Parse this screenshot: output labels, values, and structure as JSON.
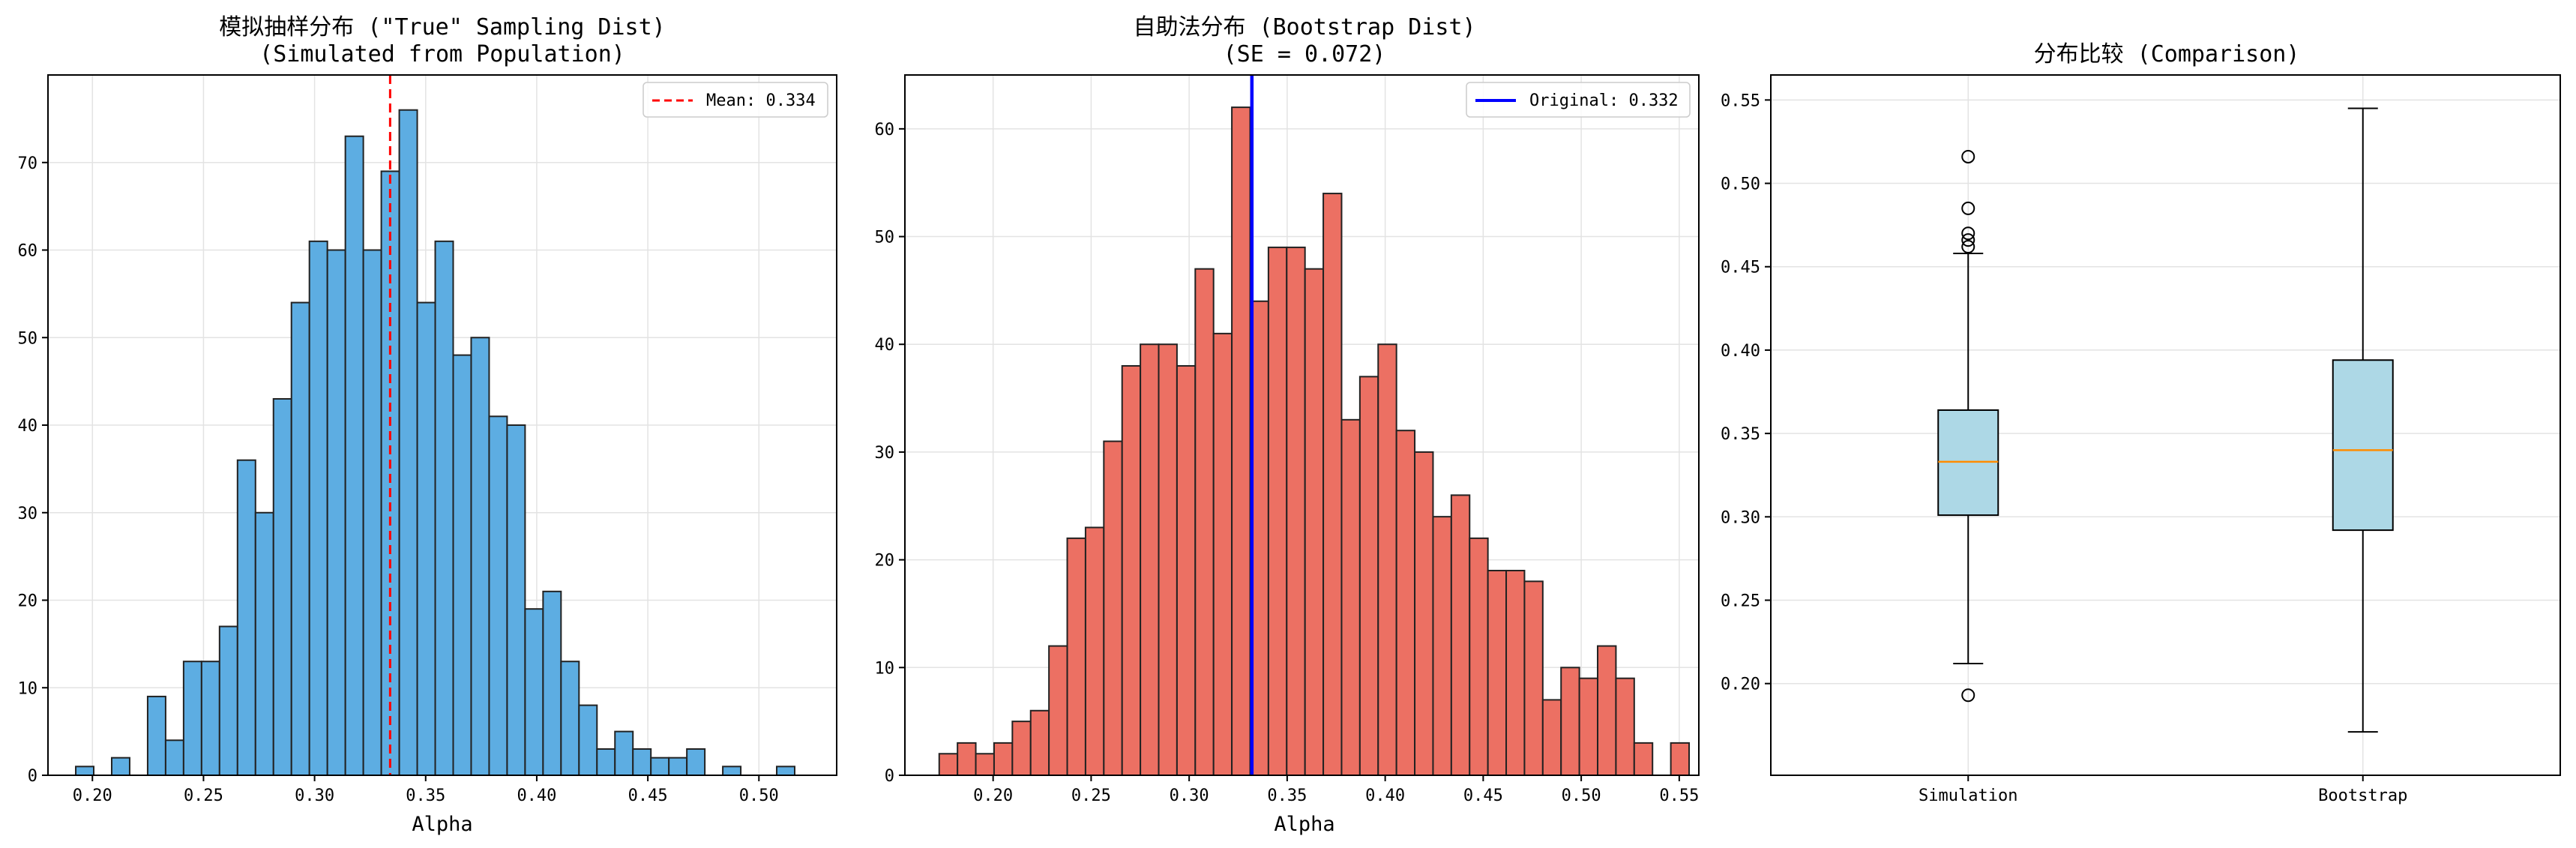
{
  "chart_data": [
    {
      "type": "bar",
      "title": [
        "模拟抽样分布 (\"True\" Sampling Dist)",
        "(Simulated from Population)"
      ],
      "xlabel": "Alpha",
      "ylabel": "",
      "xlim": [
        0.18,
        0.535
      ],
      "ylim": [
        0,
        80
      ],
      "xticks": [
        0.2,
        0.25,
        0.3,
        0.35,
        0.4,
        0.45,
        0.5
      ],
      "xtick_labels": [
        "0.20",
        "0.25",
        "0.30",
        "0.35",
        "0.40",
        "0.45",
        "0.50"
      ],
      "yticks": [
        0,
        10,
        20,
        30,
        40,
        50,
        60,
        70
      ],
      "ytick_labels": [
        "0",
        "10",
        "20",
        "30",
        "40",
        "50",
        "60",
        "70"
      ],
      "bar_color": "#5dade2",
      "bin_start": 0.1925,
      "bin_width": 0.00809,
      "values": [
        1,
        0,
        2,
        0,
        9,
        4,
        13,
        13,
        17,
        36,
        30,
        43,
        54,
        61,
        60,
        73,
        60,
        69,
        76,
        54,
        61,
        48,
        50,
        41,
        40,
        19,
        21,
        13,
        8,
        3,
        5,
        3,
        2,
        2,
        3,
        0,
        1,
        0,
        0,
        1
      ],
      "reference_line": {
        "x": 0.334,
        "color": "#ff0000",
        "style": "dashed"
      },
      "legend": {
        "position": "top-right",
        "entries": [
          "Mean: 0.334"
        ]
      },
      "grid": true
    },
    {
      "type": "bar",
      "title": [
        "自助法分布 (Bootstrap Dist)",
        "(SE = 0.072)"
      ],
      "xlabel": "Alpha",
      "ylabel": "",
      "xlim": [
        0.155,
        0.56
      ],
      "ylim": [
        0,
        65
      ],
      "xticks": [
        0.2,
        0.25,
        0.3,
        0.35,
        0.4,
        0.45,
        0.5,
        0.55
      ],
      "xtick_labels": [
        "0.20",
        "0.25",
        "0.30",
        "0.35",
        "0.40",
        "0.45",
        "0.50",
        "0.55"
      ],
      "yticks": [
        0,
        10,
        20,
        30,
        40,
        50,
        60
      ],
      "ytick_labels": [
        "0",
        "10",
        "20",
        "30",
        "40",
        "50",
        "60"
      ],
      "bar_color": "#ec7063",
      "bin_start": 0.1725,
      "bin_width": 0.00933,
      "values": [
        2,
        3,
        2,
        3,
        5,
        6,
        12,
        22,
        23,
        31,
        38,
        40,
        40,
        38,
        47,
        41,
        62,
        44,
        49,
        49,
        47,
        54,
        33,
        37,
        40,
        32,
        30,
        24,
        26,
        22,
        19,
        19,
        18,
        7,
        10,
        9,
        12,
        9,
        3,
        0,
        3
      ],
      "reference_line": {
        "x": 0.332,
        "color": "#0000ff",
        "style": "solid"
      },
      "legend": {
        "position": "top-right",
        "entries": [
          "Original: 0.332"
        ]
      },
      "grid": true
    },
    {
      "type": "box",
      "title": [
        "分布比较 (Comparison)"
      ],
      "xlabel": "",
      "ylabel": "",
      "ylim": [
        0.145,
        0.565
      ],
      "yticks": [
        0.2,
        0.25,
        0.3,
        0.35,
        0.4,
        0.45,
        0.5,
        0.55
      ],
      "ytick_labels": [
        "0.20",
        "0.25",
        "0.30",
        "0.35",
        "0.40",
        "0.45",
        "0.50",
        "0.55"
      ],
      "categories": [
        "Simulation",
        "Bootstrap"
      ],
      "box_color": "#add8e6",
      "median_color": "#ff8c00",
      "boxes": [
        {
          "q1": 0.301,
          "median": 0.333,
          "q3": 0.364,
          "whisker_low": 0.212,
          "whisker_high": 0.458,
          "outliers": [
            0.193,
            0.462,
            0.466,
            0.47,
            0.485,
            0.516
          ]
        },
        {
          "q1": 0.292,
          "median": 0.34,
          "q3": 0.394,
          "whisker_low": 0.171,
          "whisker_high": 0.545,
          "outliers": []
        }
      ],
      "grid": true
    }
  ]
}
